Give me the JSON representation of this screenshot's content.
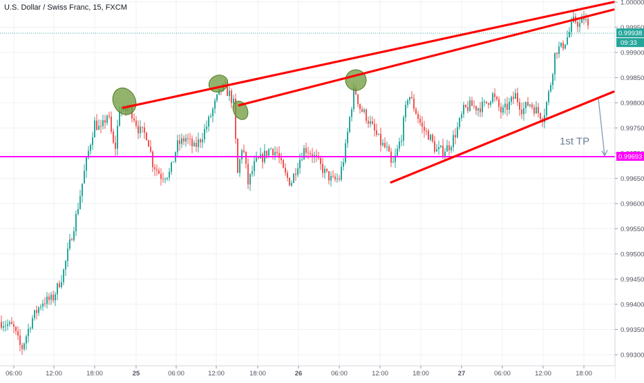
{
  "header": {
    "title": "U.S. Dollar / Swiss Franc, 15, FXCM"
  },
  "colors": {
    "up": "#26a69a",
    "down": "#ef5350",
    "trend_line": "#ff0000",
    "target_line": "#ff00ff",
    "price_label_bg": "#26a69a",
    "highlight_fill": "#6f9a3c",
    "arrow": "#7f9bb5"
  },
  "price_tag": {
    "value": "0.99938",
    "countdown": "09:33"
  },
  "target_tag": {
    "value": "0.99693"
  },
  "annotation": {
    "text": "1st TP"
  },
  "chart_data": {
    "type": "candlestick",
    "title": "U.S. Dollar / Swiss Franc, 15, FXCM",
    "symbol": "USDCHF",
    "timeframe": "15",
    "source": "FXCM",
    "ylim": [
      0.9926,
      1.0003
    ],
    "y_ticks": [
      "1.00000",
      "0.99950",
      "0.99900",
      "0.99850",
      "0.99800",
      "0.99750",
      "0.99700",
      "0.99650",
      "0.99600",
      "0.99550",
      "0.99500",
      "0.99450",
      "0.99400",
      "0.99350",
      "0.99300"
    ],
    "x_ticks": [
      "06:00",
      "12:00",
      "18:00",
      "25",
      "06:00",
      "12:00",
      "18:00",
      "26",
      "06:00",
      "12:00",
      "18:00",
      "27",
      "06:00",
      "12:00",
      "18:00"
    ],
    "last_price": 0.99938,
    "target_price": 0.99693,
    "grid": true,
    "path_anchors": [
      [
        0,
        0.99365
      ],
      [
        18,
        0.99355
      ],
      [
        30,
        0.9931
      ],
      [
        45,
        0.9937
      ],
      [
        60,
        0.99405
      ],
      [
        75,
        0.9941
      ],
      [
        90,
        0.9946
      ],
      [
        100,
        0.9952
      ],
      [
        110,
        0.9958
      ],
      [
        120,
        0.99655
      ],
      [
        128,
        0.9971
      ],
      [
        136,
        0.9976
      ],
      [
        145,
        0.99745
      ],
      [
        155,
        0.9978
      ],
      [
        165,
        0.997
      ],
      [
        172,
        0.9979
      ],
      [
        178,
        0.9978
      ],
      [
        185,
        0.9979
      ],
      [
        192,
        0.99775
      ],
      [
        200,
        0.99745
      ],
      [
        212,
        0.99735
      ],
      [
        220,
        0.9968
      ],
      [
        232,
        0.99655
      ],
      [
        245,
        0.9966
      ],
      [
        255,
        0.99715
      ],
      [
        268,
        0.9973
      ],
      [
        280,
        0.9971
      ],
      [
        290,
        0.9973
      ],
      [
        300,
        0.9976
      ],
      [
        312,
        0.99805
      ],
      [
        320,
        0.9983
      ],
      [
        330,
        0.9982
      ],
      [
        338,
        0.99795
      ],
      [
        342,
        0.9965
      ],
      [
        350,
        0.9972
      ],
      [
        358,
        0.9964
      ],
      [
        368,
        0.9968
      ],
      [
        378,
        0.9969
      ],
      [
        390,
        0.9971
      ],
      [
        400,
        0.997
      ],
      [
        410,
        0.9966
      ],
      [
        420,
        0.9964
      ],
      [
        430,
        0.9968
      ],
      [
        440,
        0.9971
      ],
      [
        450,
        0.997
      ],
      [
        460,
        0.9968
      ],
      [
        470,
        0.9966
      ],
      [
        480,
        0.99645
      ],
      [
        490,
        0.9965
      ],
      [
        498,
        0.997
      ],
      [
        505,
        0.9977
      ],
      [
        512,
        0.9983
      ],
      [
        520,
        0.9979
      ],
      [
        528,
        0.99775
      ],
      [
        540,
        0.99745
      ],
      [
        550,
        0.9972
      ],
      [
        560,
        0.99705
      ],
      [
        566,
        0.9967
      ],
      [
        572,
        0.99695
      ],
      [
        580,
        0.99735
      ],
      [
        590,
        0.9982
      ],
      [
        600,
        0.99785
      ],
      [
        610,
        0.9975
      ],
      [
        620,
        0.99735
      ],
      [
        630,
        0.99705
      ],
      [
        640,
        0.99705
      ],
      [
        650,
        0.99715
      ],
      [
        660,
        0.99745
      ],
      [
        670,
        0.99785
      ],
      [
        680,
        0.99795
      ],
      [
        690,
        0.9979
      ],
      [
        700,
        0.99795
      ],
      [
        712,
        0.99815
      ],
      [
        725,
        0.9978
      ],
      [
        735,
        0.99795
      ],
      [
        745,
        0.99815
      ],
      [
        755,
        0.99785
      ],
      [
        765,
        0.998
      ],
      [
        775,
        0.99785
      ],
      [
        785,
        0.9977
      ],
      [
        795,
        0.9983
      ],
      [
        803,
        0.99905
      ],
      [
        812,
        0.9991
      ],
      [
        820,
        0.9993
      ],
      [
        830,
        0.99965
      ],
      [
        838,
        0.99955
      ],
      [
        845,
        0.9997
      ],
      [
        852,
        0.99938
      ]
    ],
    "trend_lines": [
      {
        "role": "upper-channel-1",
        "from": [
          178,
          0.9979
        ],
        "to": [
          888,
          1.0
        ]
      },
      {
        "role": "upper-channel-2",
        "from": [
          346,
          0.99795
        ],
        "to": [
          888,
          0.99985
        ]
      },
      {
        "role": "lower-support",
        "from": [
          566,
          0.99642
        ],
        "to": [
          888,
          0.99822
        ]
      }
    ],
    "touch_points": [
      [
        180,
        0.99803
      ],
      [
        316,
        0.99838
      ],
      [
        348,
        0.99785
      ],
      [
        515,
        0.99845
      ]
    ],
    "arrow": {
      "from": [
        866,
        0.99808
      ],
      "to": [
        875,
        0.99695
      ]
    }
  }
}
